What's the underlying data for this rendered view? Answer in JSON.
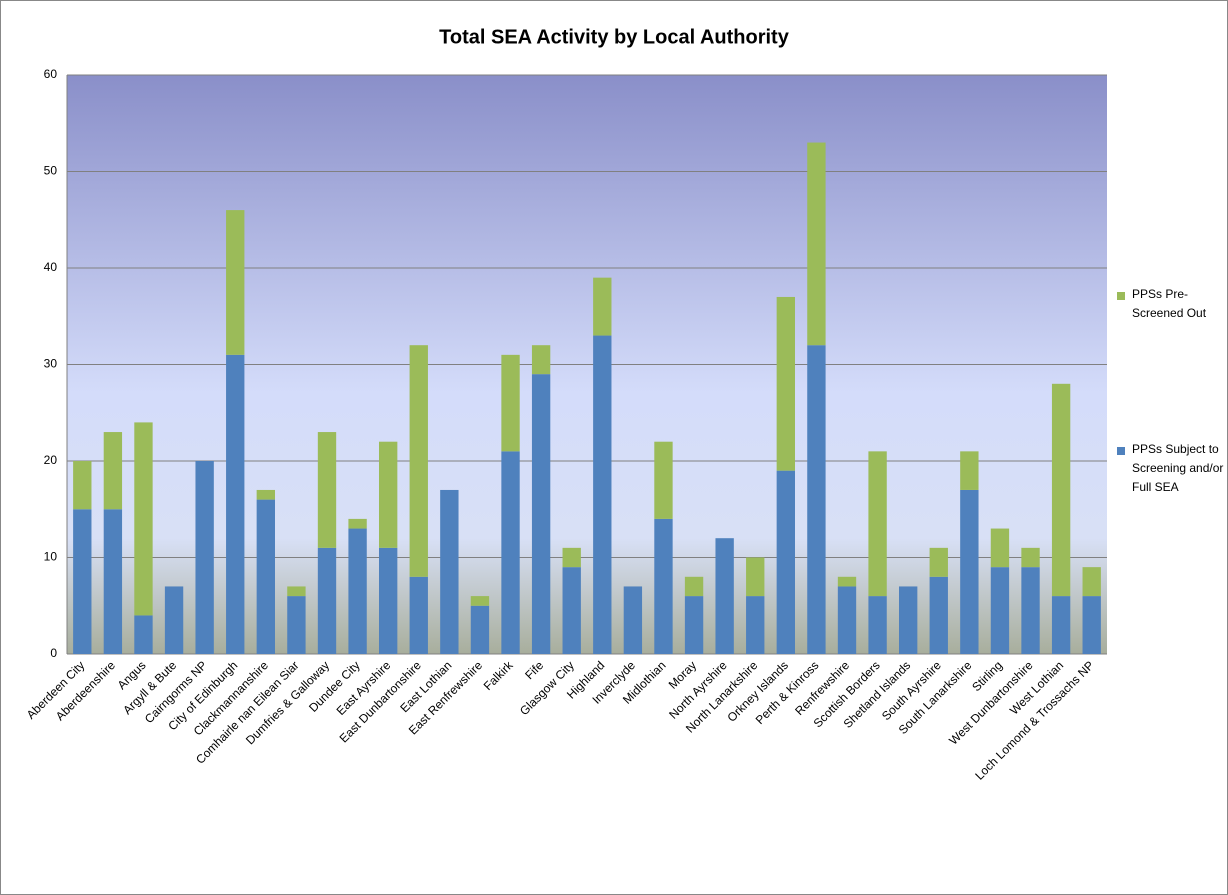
{
  "chart_data": {
    "type": "stacked_bar",
    "title": "Total SEA Activity by Local Authority",
    "categories": [
      "Aberdeen City",
      "Aberdeenshire",
      "Angus",
      "Argyll & Bute",
      "Cairngorms NP",
      "City of Edinburgh",
      "Clackmannanshire",
      "Comhairle nan Eilean Siar",
      "Dumfries & Galloway",
      "Dundee City",
      "East Ayrshire",
      "East Dunbartonshire",
      "East Lothian",
      "East Renfrewshire",
      "Falkirk",
      "Fife",
      "Glasgow City",
      "Highland",
      "Inverclyde",
      "Midlothian",
      "Moray",
      "North Ayrshire",
      "North Lanarkshire",
      "Orkney Islands",
      "Perth & Kinross",
      "Renfrewshire",
      "Scottish Borders",
      "Shetland Islands",
      "South Ayrshire",
      "South Lanarkshire",
      "Stirling",
      "West Dunbartonshire",
      "West Lothian",
      "Loch Lomond & Trossachs NP"
    ],
    "series": [
      {
        "name": "PPSs Subject to Screening and/or Full SEA",
        "color": "#4f81bd",
        "values": [
          15,
          15,
          4,
          7,
          20,
          31,
          16,
          6,
          11,
          13,
          11,
          8,
          17,
          5,
          21,
          29,
          9,
          33,
          7,
          14,
          6,
          12,
          6,
          19,
          32,
          7,
          6,
          7,
          8,
          17,
          9,
          9,
          6,
          6
        ]
      },
      {
        "name": "PPSs Pre-Screened Out",
        "color": "#9bbb59",
        "values": [
          5,
          8,
          20,
          0,
          0,
          15,
          1,
          1,
          12,
          1,
          11,
          24,
          0,
          1,
          10,
          3,
          2,
          6,
          0,
          8,
          2,
          0,
          4,
          18,
          21,
          1,
          15,
          0,
          3,
          4,
          4,
          2,
          22,
          3
        ]
      }
    ],
    "ylim": [
      0,
      60
    ],
    "yticks": [
      0,
      10,
      20,
      30,
      40,
      50,
      60
    ],
    "grid": true,
    "legend": "right"
  }
}
